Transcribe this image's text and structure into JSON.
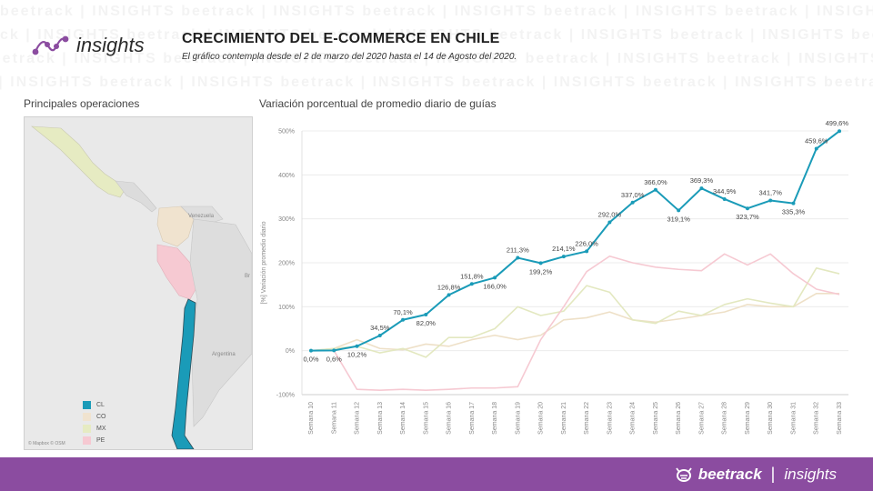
{
  "header": {
    "logo_text": "insights",
    "title": "CRECIMIENTO DEL E-COMMERCE EN CHILE",
    "subtitle": "El gráfico contempla desde el 2 de marzo del 2020 hasta el 14 de Agosto del 2020."
  },
  "watermark": "beetrack  |  INSIGHTS  ",
  "map": {
    "title": "Principales operaciones",
    "labels": [
      "Venezuela",
      "Argentina",
      "Br"
    ],
    "attribution": "© Mapbox © OSM",
    "legend": [
      {
        "label": "CL",
        "color": "#1a9bb8"
      },
      {
        "label": "CO",
        "color": "#f0e3cf"
      },
      {
        "label": "MX",
        "color": "#e6ebc2"
      },
      {
        "label": "PE",
        "color": "#f6c9d2"
      }
    ]
  },
  "footer": {
    "brand": "beetrack",
    "separator": "|",
    "product": "insights",
    "color": "#8b4ca0"
  },
  "chart_data": {
    "type": "line",
    "title": "Variación porcentual de promedio diario de guías",
    "ylabel": "[%] Variación promedio diario",
    "ylim": [
      -100,
      500
    ],
    "yticks": [
      -100,
      0,
      100,
      200,
      300,
      400,
      500
    ],
    "ytick_labels": [
      "-100%",
      "0%",
      "100%",
      "200%",
      "300%",
      "400%",
      "500%"
    ],
    "grid": true,
    "categories": [
      "Semana 10",
      "Semana 11",
      "Semana 12",
      "Semana 13",
      "Semana 14",
      "Semana 15",
      "Semana 16",
      "Semana 17",
      "Semana 18",
      "Semana 19",
      "Semana 20",
      "Semana 21",
      "Semana 22",
      "Semana 23",
      "Semana 24",
      "Semana 25",
      "Semana 26",
      "Semana 27",
      "Semana 28",
      "Semana 29",
      "Semana 30",
      "Semana 31",
      "Semana 32",
      "Semana 33"
    ],
    "series": [
      {
        "name": "CL",
        "color": "#1a9bb8",
        "values": [
          0.0,
          0.6,
          10.2,
          34.5,
          70.1,
          82.0,
          126.8,
          151.8,
          166.0,
          211.3,
          199.2,
          214.1,
          226.0,
          292.0,
          337.0,
          366.0,
          319.1,
          369.3,
          344.9,
          323.7,
          341.7,
          335.3,
          459.6,
          499.6
        ],
        "labels": [
          "0,0%",
          "0,6%",
          "10,2%",
          "34,5%",
          "70,1%",
          "82,0%",
          "126,8%",
          "151,8%",
          "166,0%",
          "211,3%",
          "199,2%",
          "214,1%",
          "226,0%",
          "292,0%",
          "337,0%",
          "366,0%",
          "319,1%",
          "369,3%",
          "344,9%",
          "323,7%",
          "341,7%",
          "335,3%",
          "459,6%",
          "499,6%"
        ]
      },
      {
        "name": "CO",
        "color": "#eee0c7",
        "values": [
          0,
          5,
          25,
          5,
          2,
          15,
          10,
          25,
          35,
          25,
          35,
          70,
          75,
          88,
          70,
          65,
          72,
          80,
          88,
          105,
          100,
          100,
          130,
          130
        ]
      },
      {
        "name": "MX",
        "color": "#e3e8c0",
        "values": [
          0,
          5,
          10,
          -5,
          5,
          -15,
          30,
          30,
          50,
          100,
          80,
          90,
          148,
          133,
          70,
          62,
          90,
          80,
          105,
          118,
          108,
          100,
          188,
          175
        ]
      },
      {
        "name": "PE",
        "color": "#f6c9d2",
        "values": [
          0,
          0,
          -88,
          -90,
          -88,
          -90,
          -88,
          -85,
          -85,
          -82,
          25,
          100,
          180,
          215,
          200,
          190,
          185,
          182,
          220,
          195,
          220,
          175,
          140,
          128
        ]
      }
    ]
  }
}
